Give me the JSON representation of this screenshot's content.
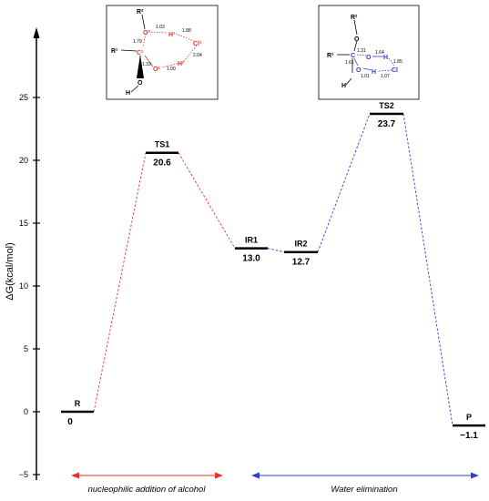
{
  "chart_data": {
    "type": "energy-profile",
    "ylabel": "ΔG(kcal/mol)",
    "ylim": [
      -5,
      30
    ],
    "yticks": [
      -5,
      0,
      5,
      10,
      15,
      20,
      25
    ],
    "grid": false,
    "states": [
      {
        "name": "R",
        "value": 0,
        "value_label": "0",
        "phase": "addition"
      },
      {
        "name": "TS1",
        "value": 20.6,
        "value_label": "20.6",
        "phase": "addition"
      },
      {
        "name": "IR1",
        "value": 13.0,
        "value_label": "13.0",
        "phase": "addition"
      },
      {
        "name": "IR2",
        "value": 12.7,
        "value_label": "12.7",
        "phase": "elimination"
      },
      {
        "name": "TS2",
        "value": 23.7,
        "value_label": "23.7",
        "phase": "elimination"
      },
      {
        "name": "P",
        "value": -1.1,
        "value_label": "-1.1",
        "phase": "elimination"
      }
    ],
    "phases": [
      {
        "id": "addition",
        "label": "nucleophilic addition of alcohol",
        "color": "#e8322a"
      },
      {
        "id": "elimination",
        "label": "Water elimination",
        "color": "#2e3bd6"
      }
    ]
  },
  "ts_structures": {
    "ts1": {
      "atoms": {
        "r2": "R²",
        "r1": "R¹",
        "c1": "C¹",
        "o2": "O²",
        "h1": "H¹",
        "cl1": "Cl¹",
        "o1": "O¹",
        "h2": "H²",
        "h": "H"
      },
      "distances": {
        "d1": "1.03",
        "d2": "1.88",
        "d3": "1.79",
        "d4": "2.04",
        "d5": "1.33",
        "d6": "1.00"
      }
    },
    "ts2": {
      "atoms": {
        "r2": "R²",
        "r1": "R¹",
        "c": "C",
        "o1": "O",
        "h1": "H",
        "o2": "O",
        "h2": "H",
        "cl": "Cl",
        "h": "H"
      },
      "distances": {
        "d1": "1.31",
        "d2": "1.64",
        "d3": "1.61",
        "d4": "1.85",
        "d5": "1.01",
        "d6": "1.07"
      }
    }
  },
  "colors": {
    "addition": "#e8322a",
    "elimination": "#2e3bd6",
    "axis": "#000000"
  }
}
